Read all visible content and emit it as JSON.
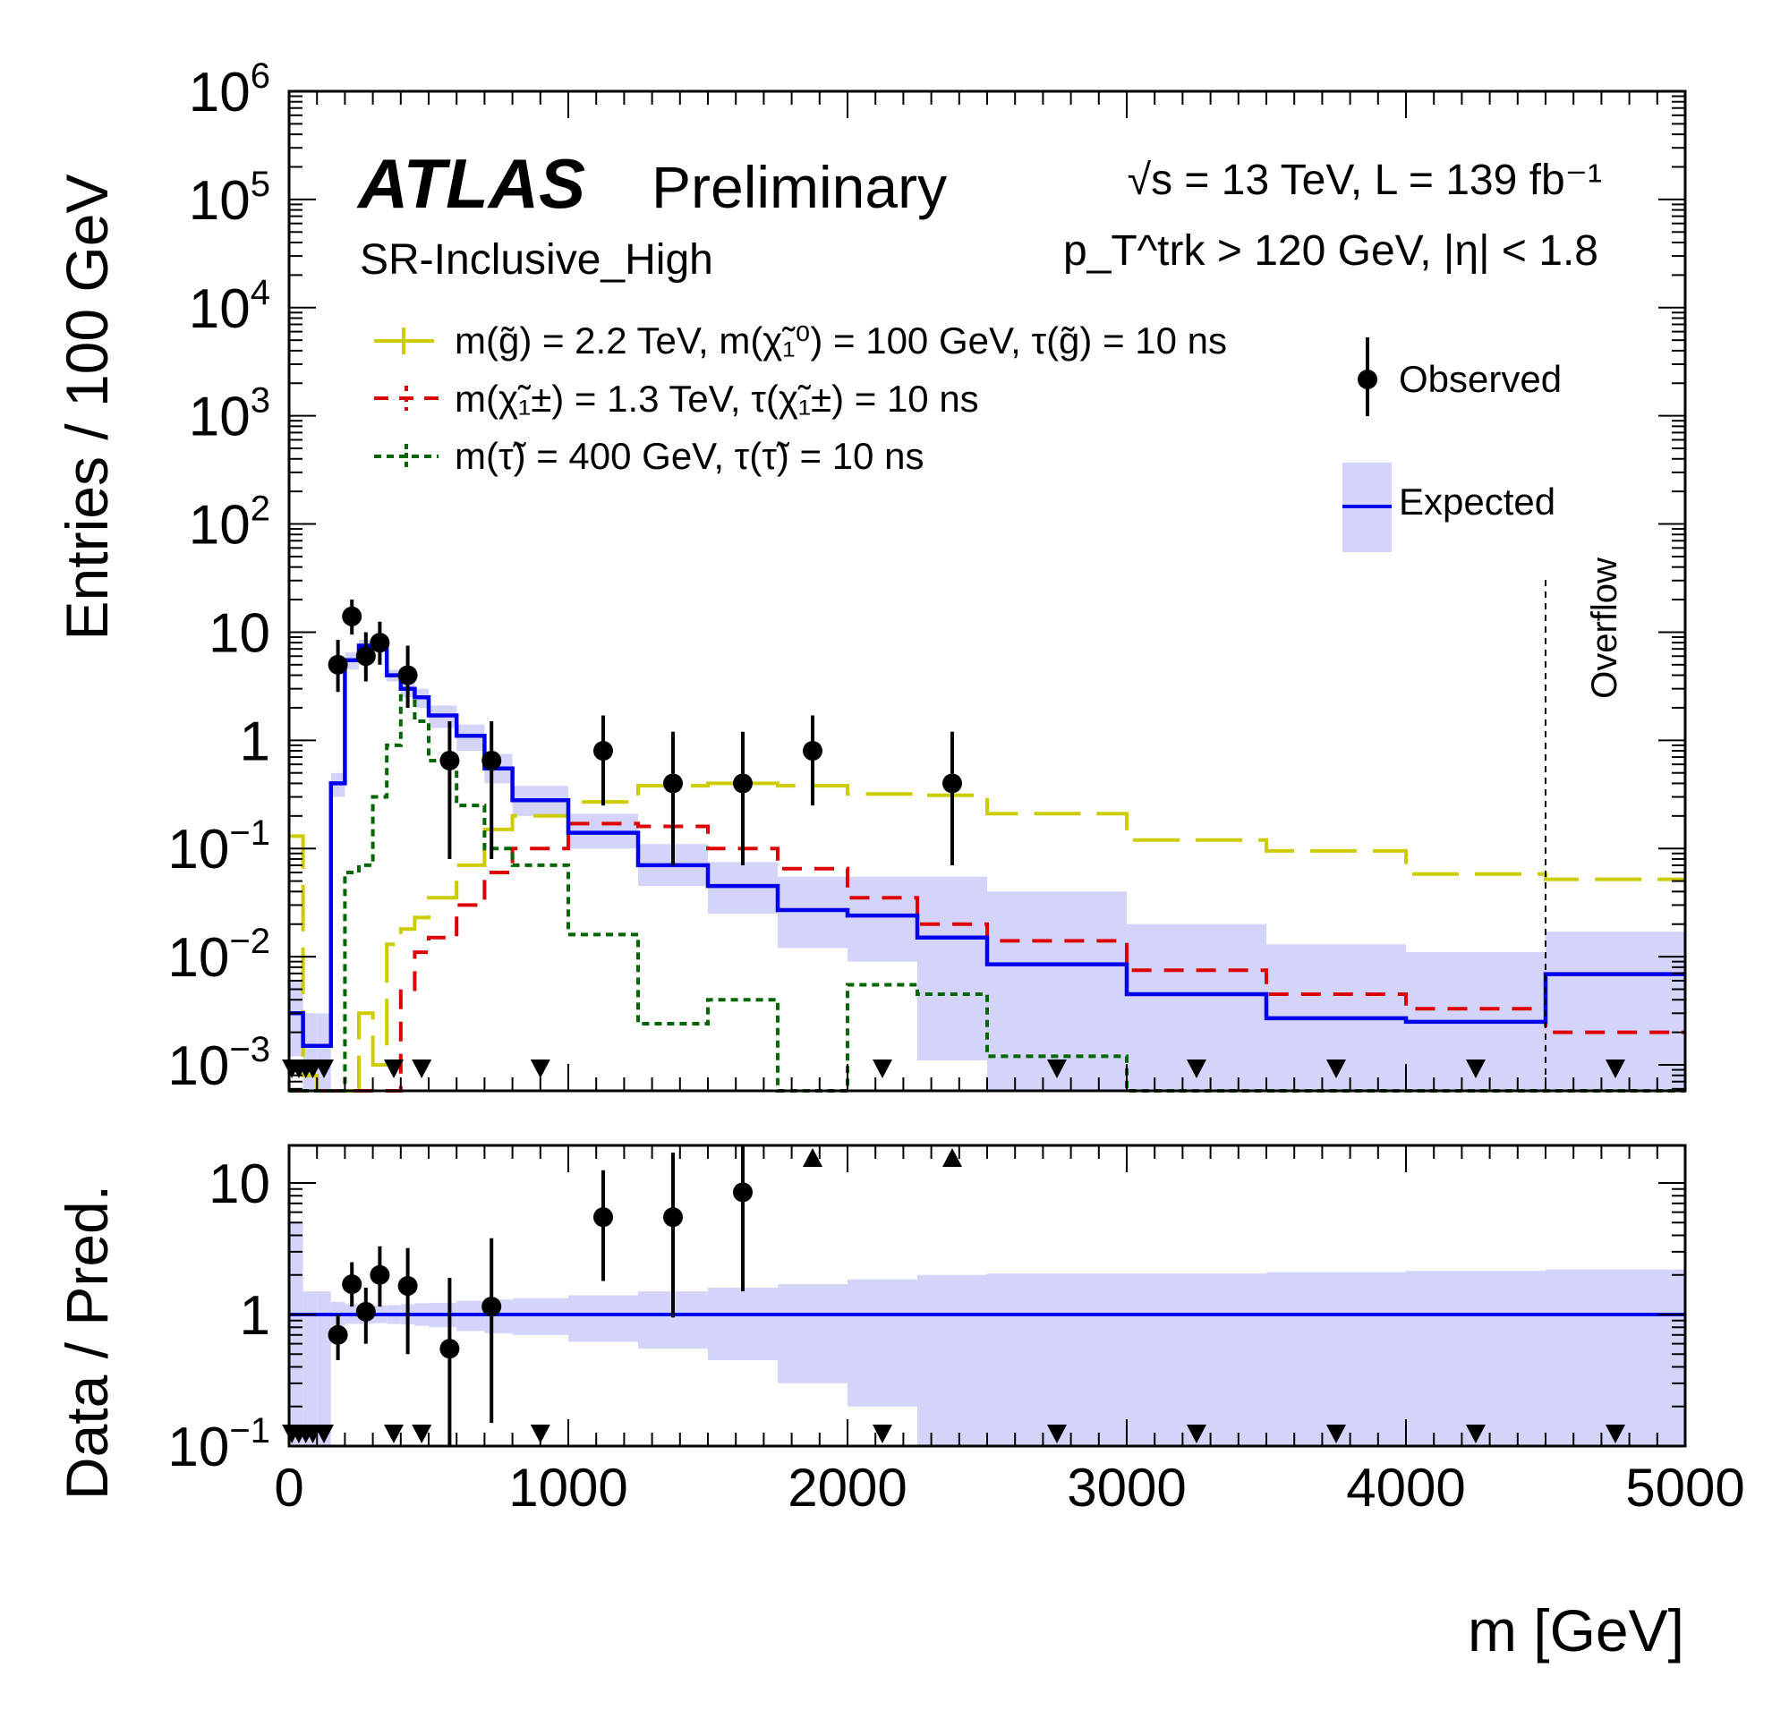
{
  "chart_data": {
    "type": "histogram",
    "experiment": "ATLAS",
    "status": "Preliminary",
    "region": "SR-Inclusive_High",
    "energy_lumi": "√s = 13 TeV, L = 139 fb⁻¹",
    "selection": "p_T^trk > 120 GeV, |η| < 1.8",
    "xlabel": "m [GeV]",
    "ylabel_top": "Entries / 100 GeV",
    "ylabel_bottom": "Data / Pred.",
    "overflow_label": "Overflow",
    "xlim": [
      0,
      5000
    ],
    "ylim_top": [
      0.0005,
      1000000
    ],
    "ylim_bottom": [
      0.1,
      20
    ],
    "log_y": true,
    "x_ticks": [
      "0",
      "1000",
      "2000",
      "3000",
      "4000",
      "5000"
    ],
    "y_ticks_top": [
      "10^-3",
      "10^-2",
      "10^-1",
      "1",
      "10",
      "10^2",
      "10^3",
      "10^4",
      "10^5",
      "10^6"
    ],
    "y_ticks_bottom": [
      "10^-1",
      "1",
      "10"
    ],
    "overflow_x": 4500,
    "legend": {
      "observed": "Observed",
      "expected": "Expected",
      "gluino": "m(g̃) = 2.2 TeV, m(χ̃₁⁰) = 100 GeV, τ(g̃) = 10 ns",
      "chargino": "m(χ̃₁±) = 1.3 TeV, τ(χ̃₁±) = 10 ns",
      "stau": "m(τ̃) =  400 GeV, τ(τ̃) = 10 ns"
    },
    "colors": {
      "expected": "#0000ee",
      "band": "#d4d4fb",
      "gluino": "#cccc00",
      "chargino": "#dd0000",
      "stau": "#006600",
      "observed": "#000000"
    },
    "bins": [
      0,
      50,
      100,
      150,
      200,
      250,
      300,
      350,
      400,
      450,
      500,
      600,
      700,
      800,
      1000,
      1250,
      1500,
      1750,
      2000,
      2250,
      2500,
      3000,
      3500,
      4000,
      4500,
      5000
    ],
    "expected": [
      0.003,
      0.0015,
      0.0015,
      0.4,
      5.5,
      7.5,
      8.0,
      4.0,
      3.0,
      2.5,
      1.7,
      1.1,
      0.55,
      0.28,
      0.14,
      0.07,
      0.045,
      0.027,
      0.024,
      0.015,
      0.0085,
      0.0045,
      0.0027,
      0.0025,
      0.0069
    ],
    "expected_band_low": [
      0.0012,
      0.0005,
      0.0005,
      0.3,
      4.5,
      6.5,
      7.0,
      3.5,
      2.5,
      2.0,
      1.3,
      0.8,
      0.4,
      0.2,
      0.1,
      0.045,
      0.025,
      0.012,
      0.009,
      0.0011,
      0.0005,
      0.0005,
      0.0005,
      0.0005,
      0.0005
    ],
    "expected_band_high": [
      0.006,
      0.003,
      0.003,
      0.5,
      6.5,
      8.5,
      9.0,
      4.5,
      3.5,
      3.0,
      2.1,
      1.4,
      0.75,
      0.38,
      0.21,
      0.11,
      0.075,
      0.055,
      0.055,
      0.055,
      0.04,
      0.02,
      0.013,
      0.011,
      0.017
    ],
    "gluino": [
      0.13,
      0.0008,
      0.0005,
      0.0005,
      0.0005,
      0.003,
      0.001,
      0.013,
      0.018,
      0.023,
      0.035,
      0.07,
      0.15,
      0.2,
      0.27,
      0.38,
      0.4,
      0.38,
      0.32,
      0.31,
      0.21,
      0.12,
      0.095,
      0.058,
      0.052
    ],
    "chargino": [
      0.0005,
      0.0005,
      0.0005,
      0.0005,
      0.0005,
      0.0005,
      0.0005,
      0.0005,
      0.005,
      0.011,
      0.015,
      0.03,
      0.06,
      0.1,
      0.17,
      0.16,
      0.1,
      0.065,
      0.035,
      0.02,
      0.014,
      0.0075,
      0.0045,
      0.0033,
      0.002
    ],
    "stau": [
      0.0005,
      0.0005,
      0.0005,
      0.0005,
      0.06,
      0.07,
      0.3,
      0.9,
      3.0,
      1.5,
      0.65,
      0.25,
      0.1,
      0.07,
      0.016,
      0.0024,
      0.004,
      0.0005,
      0.0055,
      0.0045,
      0.0012,
      0.0005,
      0.0005,
      0.0005,
      0.0005
    ],
    "observed": [
      {
        "x": 175,
        "y": 5.0,
        "lo": 2.8,
        "hi": 8.5
      },
      {
        "x": 225,
        "y": 14.0,
        "lo": 9.5,
        "hi": 20.0
      },
      {
        "x": 275,
        "y": 6.0,
        "lo": 3.5,
        "hi": 10.0
      },
      {
        "x": 325,
        "y": 8.0,
        "lo": 5.0,
        "hi": 12.5
      },
      {
        "x": 425,
        "y": 4.0,
        "lo": 2.0,
        "hi": 7.5
      },
      {
        "x": 575,
        "y": 0.65,
        "lo": 0.08,
        "hi": 1.5
      },
      {
        "x": 725,
        "y": 0.65,
        "lo": 0.08,
        "hi": 1.5
      },
      {
        "x": 1125,
        "y": 0.8,
        "lo": 0.25,
        "hi": 1.7
      },
      {
        "x": 1375,
        "y": 0.4,
        "lo": 0.07,
        "hi": 1.2
      },
      {
        "x": 1625,
        "y": 0.4,
        "lo": 0.07,
        "hi": 1.2
      },
      {
        "x": 1875,
        "y": 0.8,
        "lo": 0.25,
        "hi": 1.7
      },
      {
        "x": 2375,
        "y": 0.4,
        "lo": 0.07,
        "hi": 1.2
      }
    ],
    "zero_markers_x": [
      10,
      35,
      60,
      85,
      125,
      375,
      475,
      900,
      2125,
      2750,
      3250,
      3750,
      4250,
      4750
    ],
    "ratio": [
      {
        "x": 175,
        "y": 0.7,
        "lo": 0.45,
        "hi": 1.0
      },
      {
        "x": 225,
        "y": 1.7,
        "lo": 1.15,
        "hi": 2.5
      },
      {
        "x": 275,
        "y": 1.05,
        "lo": 0.6,
        "hi": 1.6
      },
      {
        "x": 325,
        "y": 2.0,
        "lo": 1.15,
        "hi": 3.3
      },
      {
        "x": 425,
        "y": 1.65,
        "lo": 0.5,
        "hi": 3.2
      },
      {
        "x": 575,
        "y": 0.55,
        "lo": 0.1,
        "hi": 1.9
      },
      {
        "x": 725,
        "y": 1.15,
        "lo": 0.15,
        "hi": 3.8
      },
      {
        "x": 1125,
        "y": 5.5,
        "lo": 1.8,
        "hi": 12.5
      },
      {
        "x": 1375,
        "y": 5.5,
        "lo": 0.95,
        "hi": 17.0
      },
      {
        "x": 1625,
        "y": 8.5,
        "lo": 1.5,
        "hi": 20.0
      }
    ],
    "ratio_up_markers_x": [
      1875,
      2375
    ],
    "ratio_down_markers_x": [
      10,
      35,
      60,
      85,
      125,
      375,
      475,
      900,
      2125,
      2750,
      3250,
      3750,
      4250,
      4750
    ],
    "ratio_band_low": [
      0.1,
      0.1,
      0.1,
      0.82,
      0.85,
      0.85,
      0.86,
      0.85,
      0.84,
      0.82,
      0.8,
      0.75,
      0.72,
      0.7,
      0.62,
      0.55,
      0.45,
      0.3,
      0.2,
      0.1,
      0.1,
      0.1,
      0.1,
      0.1,
      0.1
    ],
    "ratio_band_high": [
      5.0,
      1.5,
      1.5,
      1.25,
      1.2,
      1.18,
      1.17,
      1.18,
      1.2,
      1.22,
      1.23,
      1.27,
      1.3,
      1.33,
      1.4,
      1.5,
      1.6,
      1.7,
      1.85,
      2.0,
      2.05,
      2.05,
      2.1,
      2.15,
      2.2
    ]
  }
}
